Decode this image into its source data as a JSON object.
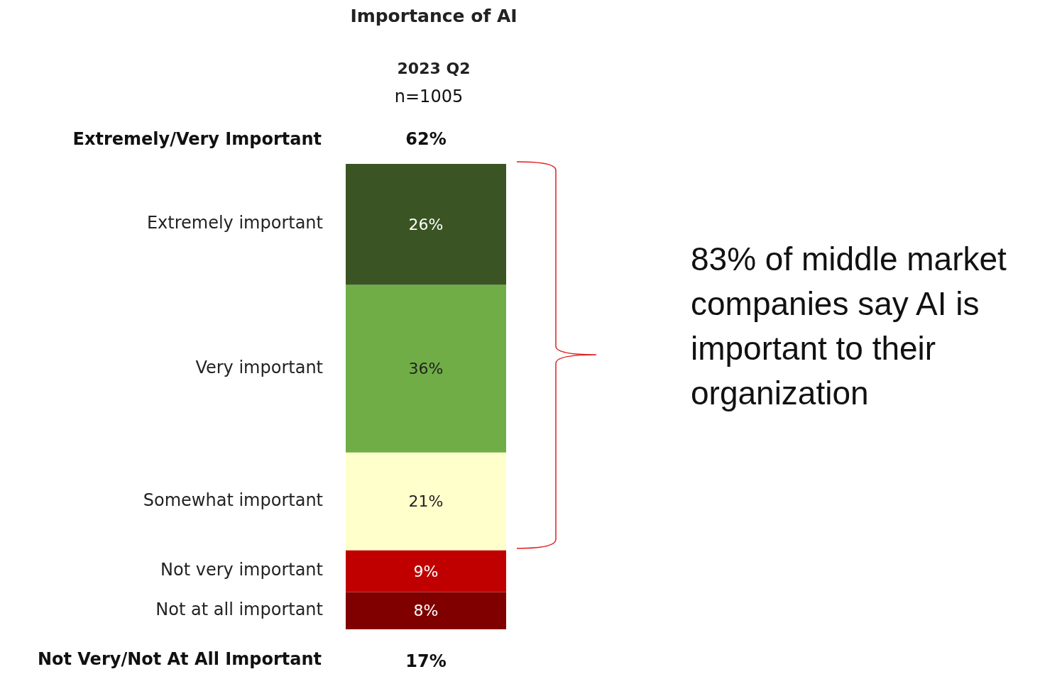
{
  "chart_data": {
    "type": "bar",
    "title": "Importance of AI",
    "subtitle": "2023 Q2",
    "categories": [
      null
    ],
    "stacked": true,
    "legend": false,
    "series": [
      {
        "name": "Not at all important",
        "color": "#800000",
        "values": [
          8
        ],
        "value_labels": [
          "8%"
        ]
      },
      {
        "name": "Not very important",
        "color": "#c00000",
        "values": [
          9
        ],
        "value_labels": [
          "9%"
        ]
      },
      {
        "name": "Somewhat important",
        "color": "#ffffcc",
        "values": [
          21
        ],
        "value_labels": [
          "21%"
        ]
      },
      {
        "name": "Very important",
        "color": "#70ad47",
        "values": [
          36
        ],
        "value_labels": [
          "36%"
        ]
      },
      {
        "name": "Extremely important",
        "color": "#3a5423",
        "values": [
          26
        ],
        "value_labels": [
          "26%"
        ]
      }
    ],
    "annotations": [
      "n=1005",
      "Extremely/Very Important",
      "62%",
      "Not Very/Not At All Important",
      "17%",
      "83% of middle market companies say AI is important to their organization"
    ]
  }
}
